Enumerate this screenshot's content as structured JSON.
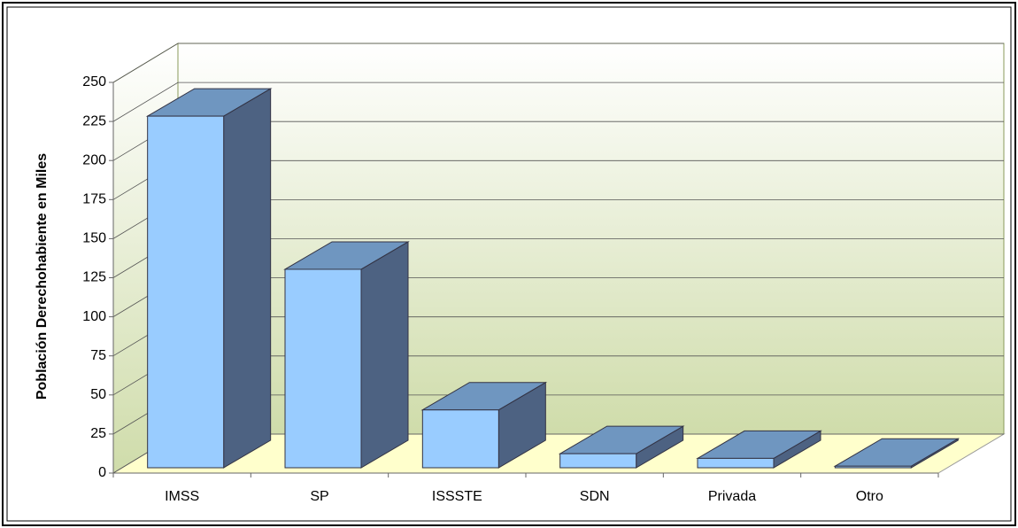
{
  "chart_data": {
    "type": "bar",
    "y_label": "Población Derechohabiente en Miles",
    "categories": [
      "IMSS",
      "SP",
      "ISSSTE",
      "SDN",
      "Privada",
      "Otro"
    ],
    "values": [
      225,
      127,
      37,
      9,
      6,
      1
    ],
    "color": "#99ccff",
    "ylim": [
      0,
      250
    ],
    "yticks": [
      0,
      25,
      50,
      75,
      100,
      125,
      150,
      175,
      200,
      225,
      250
    ],
    "grid": true
  }
}
